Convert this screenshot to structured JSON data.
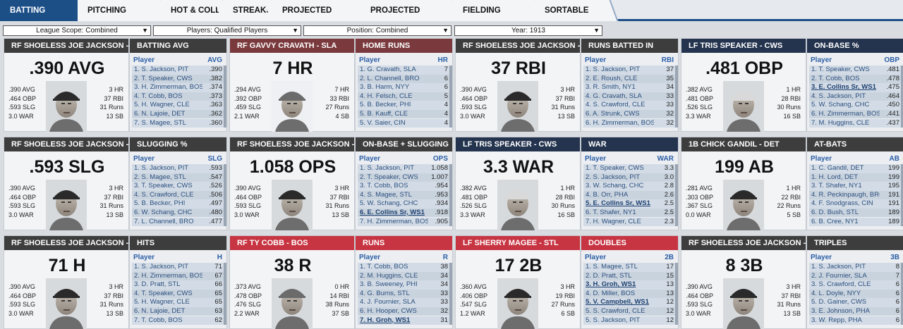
{
  "tabs": [
    "BATTING LEADERS",
    "PITCHING LEADERS",
    "HOT & COLD",
    "STREAKS",
    "PROJECTED BATTING",
    "PROJECTED PITCHING",
    "FIELDING LEADERS",
    "SORTABLE STATS"
  ],
  "filters": {
    "league_scope": "League Scope: Combined",
    "players": "Players: Qualified Players",
    "position": "Position: Combined",
    "year": "Year: 1913"
  },
  "colors": {
    "accent": "#1d4f87",
    "gray_header": "#3d3d3d",
    "red_header": "#7a3a3d",
    "bright_red_header": "#c73442",
    "navy_header": "#24344f"
  },
  "players": {
    "jackson": {
      "header": "RF SHOELESS JOE JACKSON - PIT",
      "left": [
        ".390 AVG",
        ".464 OBP",
        ".593 SLG",
        "3.0 WAR"
      ],
      "right": [
        "3 HR",
        "37 RBI",
        "31 Runs",
        "13 SB"
      ]
    },
    "cravath": {
      "header": "RF GAVVY CRAVATH - SLA",
      "left": [
        ".294 AVG",
        ".392 OBP",
        ".459 SLG",
        "2.1 WAR"
      ],
      "right": [
        "7 HR",
        "33 RBI",
        "27 Runs",
        "4 SB"
      ]
    },
    "speaker": {
      "header": "LF TRIS SPEAKER - CWS",
      "left": [
        ".382 AVG",
        ".481 OBP",
        ".526 SLG",
        "3.3 WAR"
      ],
      "right": [
        "1 HR",
        "28 RBI",
        "30 Runs",
        "16 SB"
      ]
    },
    "gandil": {
      "header": "1B CHICK GANDIL - DET",
      "left": [
        ".281 AVG",
        ".303 OBP",
        ".367 SLG",
        "0.0 WAR"
      ],
      "right": [
        "1 HR",
        "22 RBI",
        "22 Runs",
        "5 SB"
      ]
    },
    "cobb": {
      "header": "RF TY COBB - BOS",
      "left": [
        ".373 AVG",
        ".478 OBP",
        ".476 SLG",
        "2.2 WAR"
      ],
      "right": [
        "0 HR",
        "14 RBI",
        "38 Runs",
        "37 SB"
      ]
    },
    "magee": {
      "header": "LF SHERRY MAGEE - STL",
      "left": [
        ".360 AVG",
        ".406 OBP",
        ".547 SLG",
        "1.2 WAR"
      ],
      "right": [
        "3 HR",
        "19 RBI",
        "27 Runs",
        "6 SB"
      ]
    }
  },
  "cards": [
    {
      "player": "jackson",
      "big": ".390 AVG",
      "title": "BATTING AVG",
      "col": "AVG",
      "theme": "gray",
      "photo": "jackson",
      "rows": [
        [
          "1. S. Jackson, PIT",
          ".390"
        ],
        [
          "2. T. Speaker, CWS",
          ".382"
        ],
        [
          "3. H. Zimmerman, BOS",
          ".374"
        ],
        [
          "4. T. Cobb, BOS",
          ".373"
        ],
        [
          "5. H. Wagner, CLE",
          ".363"
        ],
        [
          "6. N. Lajoie, DET",
          ".362"
        ],
        [
          "7. S. Magee, STL",
          ".360"
        ]
      ]
    },
    {
      "player": "cravath",
      "big": "7 HR",
      "title": "HOME RUNS",
      "col": "HR",
      "theme": "red",
      "photo": "cravath",
      "rows": [
        [
          "1. G. Cravath, SLA",
          "7"
        ],
        [
          "2. L. Channell, BRO",
          "6"
        ],
        [
          "3. B. Harm, NYY",
          "6"
        ],
        [
          "4. H. Felsch, CLE",
          "5"
        ],
        [
          "5. B. Becker, PHI",
          "4"
        ],
        [
          "5. B. Kauff, CLE",
          "4"
        ],
        [
          "5. V. Saier, CIN",
          "4"
        ]
      ]
    },
    {
      "player": "jackson",
      "big": "37 RBI",
      "title": "RUNS BATTED IN",
      "col": "RBI",
      "theme": "gray",
      "photo": "jackson",
      "rows": [
        [
          "1. S. Jackson, PIT",
          "37"
        ],
        [
          "2. E. Roush, CLE",
          "35"
        ],
        [
          "3. R. Smith, NY1",
          "34"
        ],
        [
          "4. G. Cravath, SLA",
          "33"
        ],
        [
          "4. S. Crawford, CLE",
          "33"
        ],
        [
          "6. A. Strunk, CWS",
          "32"
        ],
        [
          "6. H. Zimmerman, BOS",
          "32"
        ]
      ]
    },
    {
      "player": "speaker",
      "big": ".481 OBP",
      "title": "ON-BASE %",
      "col": "OBP",
      "theme": "navy",
      "photo": "speaker",
      "rows": [
        [
          "1. T. Speaker, CWS",
          ".481"
        ],
        [
          "2. T. Cobb, BOS",
          ".478"
        ],
        [
          "3. E. Collins Sr, WS1",
          ".475",
          "hl"
        ],
        [
          "4. S. Jackson, PIT",
          ".464"
        ],
        [
          "5. W. Schang, CHC",
          ".450"
        ],
        [
          "6. H. Zimmerman, BOS",
          ".441"
        ],
        [
          "7. M. Huggins, CLE",
          ".437"
        ]
      ]
    },
    {
      "player": "jackson",
      "big": ".593 SLG",
      "title": "SLUGGING %",
      "col": "SLG",
      "theme": "gray",
      "photo": "jackson",
      "rows": [
        [
          "1. S. Jackson, PIT",
          ".593"
        ],
        [
          "2. S. Magee, STL",
          ".547"
        ],
        [
          "3. T. Speaker, CWS",
          ".526"
        ],
        [
          "4. S. Crawford, CLE",
          ".506"
        ],
        [
          "5. B. Becker, PHI",
          ".497"
        ],
        [
          "6. W. Schang, CHC",
          ".480"
        ],
        [
          "7. L. Channell, BRO",
          ".477"
        ]
      ]
    },
    {
      "player": "jackson",
      "big": "1.058 OPS",
      "title": "ON-BASE + SLUGGING",
      "col": "OPS",
      "theme": "gray",
      "photo": "jackson",
      "rows": [
        [
          "1. S. Jackson, PIT",
          "1.058"
        ],
        [
          "2. T. Speaker, CWS",
          "1.007"
        ],
        [
          "3. T. Cobb, BOS",
          ".954"
        ],
        [
          "4. S. Magee, STL",
          ".953"
        ],
        [
          "5. W. Schang, CHC",
          ".934"
        ],
        [
          "6. E. Collins Sr, WS1",
          ".918",
          "hl"
        ],
        [
          "7. H. Zimmerman, BOS",
          ".905"
        ]
      ]
    },
    {
      "player": "speaker",
      "big": "3.3 WAR",
      "title": "WAR",
      "col": "WAR",
      "theme": "navy",
      "photo": "speaker",
      "rows": [
        [
          "1. T. Speaker, CWS",
          "3.3"
        ],
        [
          "2. S. Jackson, PIT",
          "3.0"
        ],
        [
          "3. W. Schang, CHC",
          "2.8"
        ],
        [
          "4. B. Orr, PHA",
          "2.6"
        ],
        [
          "5. E. Collins Sr, WS1",
          "2.5",
          "hl"
        ],
        [
          "6. T. Shafer, NY1",
          "2.5"
        ],
        [
          "7. H. Wagner, CLE",
          "2.3"
        ]
      ]
    },
    {
      "player": "gandil",
      "big": "199 AB",
      "title": "AT-BATS",
      "col": "AB",
      "theme": "gray",
      "photo": "gandil",
      "rows": [
        [
          "1. C. Gandil, DET",
          "199"
        ],
        [
          "1. H. Lord, DET",
          "199"
        ],
        [
          "3. T. Shafer, NY1",
          "195"
        ],
        [
          "4. R. Peckinpaugh, BRO",
          "191"
        ],
        [
          "4. F. Snodgrass, CIN",
          "191"
        ],
        [
          "6. D. Bush, STL",
          "189"
        ],
        [
          "6. B. Cree, NY1",
          "189"
        ]
      ]
    },
    {
      "player": "jackson",
      "big": "71 H",
      "title": "HITS",
      "col": "H",
      "theme": "gray",
      "photo": "jackson",
      "rows": [
        [
          "1. S. Jackson, PIT",
          "71"
        ],
        [
          "2. H. Zimmerman, BOS",
          "67"
        ],
        [
          "3. D. Pratt, STL",
          "66"
        ],
        [
          "4. T. Speaker, CWS",
          "65"
        ],
        [
          "5. H. Wagner, CLE",
          "65"
        ],
        [
          "6. N. Lajoie, DET",
          "63"
        ],
        [
          "7. T. Cobb, BOS",
          "62"
        ]
      ]
    },
    {
      "player": "cobb",
      "big": "38 R",
      "title": "RUNS",
      "col": "R",
      "theme": "bred",
      "photo": "cobb",
      "rows": [
        [
          "1. T. Cobb, BOS",
          "38"
        ],
        [
          "2. M. Huggins, CLE",
          "34"
        ],
        [
          "3. B. Sweeney, PHI",
          "34"
        ],
        [
          "4. G. Burns, STL",
          "33"
        ],
        [
          "4. J. Fournier, SLA",
          "33"
        ],
        [
          "6. H. Hooper, CWS",
          "32"
        ],
        [
          "7. H. Groh, WS1",
          "31",
          "hl"
        ]
      ]
    },
    {
      "player": "magee",
      "big": "17 2B",
      "title": "DOUBLES",
      "col": "2B",
      "theme": "bred",
      "photo": "magee",
      "rows": [
        [
          "1. S. Magee, STL",
          "17"
        ],
        [
          "2. D. Pratt, STL",
          "15"
        ],
        [
          "3. H. Groh, WS1",
          "13",
          "hl"
        ],
        [
          "4. D. Miller, BOS",
          "13"
        ],
        [
          "5. V. Campbell, WS1",
          "12",
          "hl"
        ],
        [
          "5. S. Crawford, CLE",
          "12"
        ],
        [
          "5. S. Jackson, PIT",
          "12"
        ]
      ]
    },
    {
      "player": "jackson",
      "big": "8 3B",
      "title": "TRIPLES",
      "col": "3B",
      "theme": "gray",
      "photo": "jackson",
      "rows": [
        [
          "1. S. Jackson, PIT",
          "8"
        ],
        [
          "2. J. Fournier, SLA",
          "7"
        ],
        [
          "3. S. Crawford, CLE",
          "6"
        ],
        [
          "4. L. Doyle, NYY",
          "6"
        ],
        [
          "5. D. Gainer, CWS",
          "6"
        ],
        [
          "3. E. Johnson, PHA",
          "6"
        ],
        [
          "3. W. Repp, PHA",
          "6"
        ]
      ]
    }
  ],
  "table_header_player": "Player"
}
